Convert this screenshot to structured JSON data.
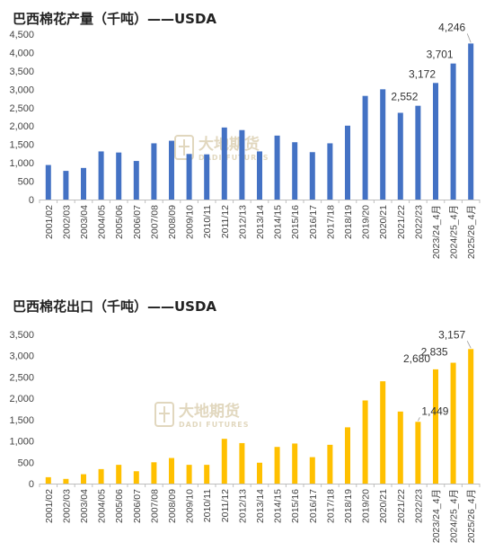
{
  "colors": {
    "production": "#4472C4",
    "export": "#FFC000",
    "axis": "#BFBFBF",
    "watermark": "#C9B88A"
  },
  "watermark": {
    "cn": "大地期货",
    "en": "DADI FUTURES"
  },
  "chart_data": [
    {
      "type": "bar",
      "title": "巴西棉花产量（千吨）——USDA",
      "categories": [
        "2001/02",
        "2002/03",
        "2003/04",
        "2004/05",
        "2005/06",
        "2006/07",
        "2007/08",
        "2008/09",
        "2009/10",
        "2010/11",
        "2011/12",
        "2012/13",
        "2013/14",
        "2014/15",
        "2015/16",
        "2016/17",
        "2017/18",
        "2018/19",
        "2019/20",
        "2020/21",
        "2021/22",
        "2022/23",
        "2023/24_4月",
        "2024/25_4月",
        "2025/26_4月"
      ],
      "values": [
        940,
        780,
        860,
        1310,
        1280,
        1050,
        1530,
        1600,
        1240,
        1230,
        1960,
        1890,
        1310,
        1740,
        1560,
        1290,
        1530,
        2010,
        2820,
        3000,
        2360,
        2552,
        3172,
        3701,
        4246
      ],
      "labels": {
        "21": "2,552",
        "22": "3,172",
        "23": "3,701",
        "24": "4,246"
      },
      "yticks": [
        "0",
        "500",
        "1,000",
        "1,500",
        "2,000",
        "2,500",
        "3,000",
        "3,500",
        "4,000",
        "4,500"
      ],
      "ylim": [
        0,
        4500
      ]
    },
    {
      "type": "bar",
      "title": "巴西棉花出口（千吨）——USDA",
      "categories": [
        "2001/02",
        "2002/03",
        "2003/04",
        "2004/05",
        "2005/06",
        "2006/07",
        "2007/08",
        "2008/09",
        "2009/10",
        "2010/11",
        "2011/12",
        "2012/13",
        "2013/14",
        "2014/15",
        "2015/16",
        "2016/17",
        "2017/18",
        "2018/19",
        "2019/20",
        "2020/21",
        "2021/22",
        "2022/23",
        "2023/24_4月",
        "2024/25_4月",
        "2025/26_4月"
      ],
      "values": [
        150,
        110,
        220,
        340,
        440,
        290,
        500,
        600,
        440,
        440,
        1050,
        950,
        490,
        860,
        940,
        620,
        910,
        1320,
        1950,
        2400,
        1690,
        1449,
        2680,
        2835,
        3157
      ],
      "labels": {
        "21": "1,449",
        "22": "2,680",
        "23": "2,835",
        "24": "3,157"
      },
      "yticks": [
        "0",
        "500",
        "1,000",
        "1,500",
        "2,000",
        "2,500",
        "3,000",
        "3,500"
      ],
      "ylim": [
        0,
        3500
      ]
    }
  ]
}
